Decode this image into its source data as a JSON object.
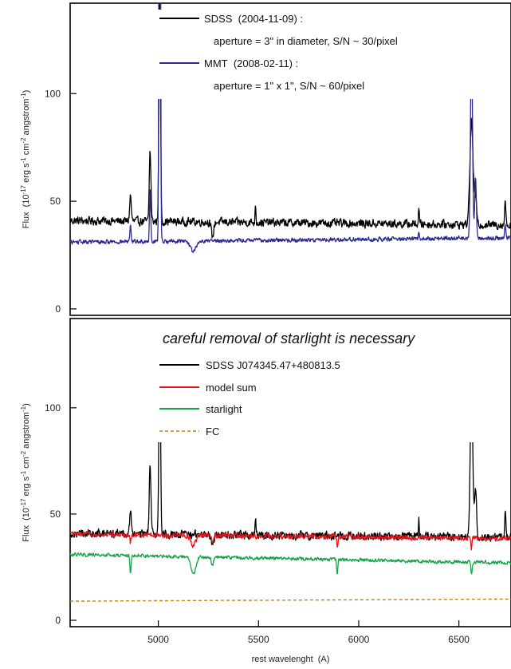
{
  "chart_data": [
    {
      "type": "line",
      "panel": "top",
      "ylabel_prefix": "Flux  (10",
      "ylabel_exp1": "-17",
      "ylabel_mid": " erg s",
      "ylabel_exp2": "-1",
      "ylabel_cm": " cm",
      "ylabel_exp3": "-2",
      "ylabel_suffix": " angstrom",
      "ylabel_exp4": "-1",
      "ylabel_close": ")",
      "xlim": [
        4560,
        6760
      ],
      "ylim": [
        -3,
        142
      ],
      "yticks": [
        0,
        50,
        100
      ],
      "ytick_labels": [
        "0",
        "50",
        "100"
      ],
      "legend": {
        "entries": [
          {
            "label": "SDSS  (2004-11-09) :",
            "note": "aperture = 3\" in diameter, S/N ~ 30/pixel",
            "color": "#000000"
          },
          {
            "label": "MMT  (2008-02-11) :",
            "note": "aperture = 1\" x 1\", S/N ~ 60/pixel",
            "color": "#2b2b8f"
          }
        ],
        "placement": "top-center"
      },
      "series": [
        {
          "key": "sdss",
          "color": "#000000",
          "baseline": 41,
          "baseline_end": 39,
          "noise": 2.6,
          "lines": [
            [
              4861,
              12,
              4
            ],
            [
              4959,
              33,
              4
            ],
            [
              5007,
              110,
              4
            ],
            [
              5270,
              -7,
              6
            ],
            [
              5485,
              9,
              2
            ],
            [
              6300,
              8,
              2
            ],
            [
              6563,
              48,
              8
            ],
            [
              6583,
              12,
              5
            ],
            [
              6731,
              12,
              3
            ]
          ]
        },
        {
          "key": "mmt",
          "color": "#2b2b8f",
          "baseline": 31,
          "baseline_end": 33,
          "noise": 1.3,
          "lines": [
            [
              4861,
              7,
              3
            ],
            [
              4959,
              25,
              3
            ],
            [
              5007,
              500,
              3
            ],
            [
              5175,
              -5,
              14
            ],
            [
              6300,
              3,
              2
            ],
            [
              6563,
              92,
              5
            ],
            [
              6583,
              28,
              4
            ],
            [
              6731,
              6,
              3
            ]
          ]
        }
      ]
    },
    {
      "type": "line",
      "panel": "bottom",
      "annotation": "careful removal of starlight is necessary",
      "xlabel": "rest wavelenght  (A)",
      "ylabel_prefix": "Flux  (10",
      "ylabel_exp1": "-17",
      "ylabel_mid": " erg s",
      "ylabel_exp2": "-1",
      "ylabel_cm": " cm",
      "ylabel_exp3": "-2",
      "ylabel_suffix": " angstrom",
      "ylabel_exp4": "-1",
      "ylabel_close": ")",
      "xlim": [
        4560,
        6760
      ],
      "ylim": [
        -3,
        142
      ],
      "xticks": [
        5000,
        5500,
        6000,
        6500
      ],
      "xtick_labels": [
        "5000",
        "5500",
        "6000",
        "6500"
      ],
      "yticks": [
        0,
        50,
        100
      ],
      "ytick_labels": [
        "0",
        "50",
        "100"
      ],
      "legend": {
        "entries": [
          {
            "label": "SDSS J074345.47+480813.5",
            "color": "#000000",
            "style": "solid"
          },
          {
            "label": "model sum",
            "color": "#e8141c",
            "style": "solid"
          },
          {
            "label": "starlight",
            "color": "#17a348",
            "style": "solid"
          },
          {
            "label": "FC",
            "color": "#b8860b",
            "style": "dashed"
          }
        ],
        "placement": "top-center"
      },
      "series": [
        {
          "key": "sdss",
          "color": "#000000",
          "baseline": 41,
          "baseline_end": 39,
          "noise": 2.6,
          "lines": [
            [
              4861,
              12,
              4
            ],
            [
              4959,
              33,
              4
            ],
            [
              5007,
              97,
              4
            ],
            [
              5270,
              -5,
              6
            ],
            [
              5485,
              9,
              2
            ],
            [
              6300,
              8,
              2
            ],
            [
              6563,
              75,
              6
            ],
            [
              6583,
              22,
              5
            ],
            [
              6731,
              12,
              3
            ]
          ]
        },
        {
          "key": "model",
          "color": "#e8141c",
          "baseline": 40.5,
          "baseline_end": 38.5,
          "noise": 1.6,
          "lines": [
            [
              4861,
              -4,
              3
            ],
            [
              5175,
              -5,
              12
            ],
            [
              5270,
              -3,
              5
            ],
            [
              5893,
              -4,
              3
            ],
            [
              6563,
              -5,
              3
            ]
          ]
        },
        {
          "key": "starlight",
          "color": "#17a348",
          "baseline": 31,
          "baseline_end": 27,
          "noise": 1.1,
          "lines": [
            [
              4861,
              -8,
              3
            ],
            [
              5175,
              -8,
              12
            ],
            [
              5270,
              -4,
              5
            ],
            [
              5893,
              -7,
              3
            ],
            [
              6563,
              -6,
              3
            ]
          ]
        },
        {
          "key": "fc",
          "color": "#b8860b",
          "baseline": 9,
          "baseline_end": 10,
          "noise": 0,
          "dashed": true,
          "lines": []
        }
      ]
    }
  ]
}
